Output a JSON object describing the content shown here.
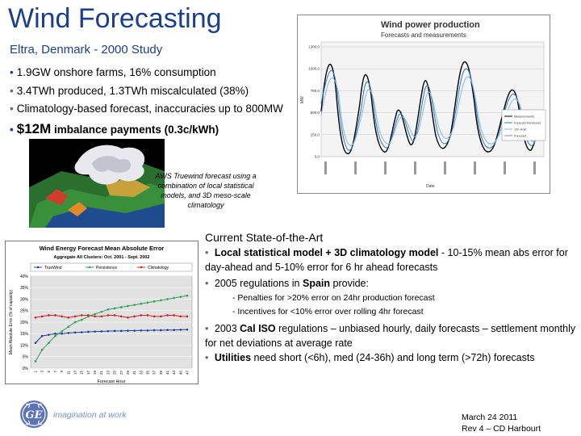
{
  "title": "Wind Forecasting",
  "subtitle": "Eltra, Denmark - 2000 Study",
  "bullets": [
    "1.9GW onshore farms, 16% consumption",
    "3.4TWh produced, 1.3TWh miscalculated (38%)",
    "Climatology-based forecast, inaccuracies up to 800MW"
  ],
  "bullet4": {
    "big": "$12M",
    "rest": " imbalance payments (0.3c/kWh)"
  },
  "wind_chart": {
    "title": "Wind power production",
    "subtitle": "Forecasts and measurements",
    "ylabel": "MW",
    "xlabel": "Date",
    "yticks": [
      "1300,0",
      "1000,0",
      "750,0",
      "500,0",
      "250,0",
      "0,0"
    ],
    "legend": [
      "Measurements",
      "Forecast Kemhuset",
      "12h-Hold",
      "Forecast"
    ]
  },
  "caption": "AWS Truewind forecast using a combination of local statistical models, and 3D meso-scale climatology",
  "chart_data": {
    "type": "line",
    "title": "Wind Energy Forecast Mean Absolute Error",
    "subtitle": "Aggregate All Clusters: Oct. 2001 - Sept. 2002",
    "xlabel": "Forecast Hour",
    "ylabel": "Mean Absolute Error (% of capacity)",
    "ylim": [
      0,
      40
    ],
    "yticks": [
      "0%",
      "5%",
      "10%",
      "15%",
      "20%",
      "25%",
      "30%",
      "35%",
      "40%"
    ],
    "x": [
      1,
      3,
      5,
      7,
      9,
      11,
      13,
      15,
      17,
      19,
      21,
      23,
      25,
      27,
      29,
      31,
      33,
      35,
      37,
      39,
      41,
      43,
      45,
      47
    ],
    "series": [
      {
        "name": "TrueWind",
        "color": "#1f3fa0",
        "values": [
          11,
          14,
          14.5,
          15,
          15,
          15.3,
          15.5,
          15.6,
          15.8,
          15.9,
          16,
          16.1,
          16.2,
          16.2,
          16.3,
          16.3,
          16.4,
          16.4,
          16.5,
          16.5,
          16.6,
          16.6,
          16.7,
          16.8
        ]
      },
      {
        "name": "Persistence",
        "color": "#2e9e5b",
        "values": [
          3,
          8,
          11,
          14,
          16,
          18,
          20,
          21,
          22.5,
          23.5,
          24.5,
          25.5,
          26,
          26.5,
          27,
          27.5,
          28,
          28.5,
          29,
          29.5,
          30,
          30.5,
          31,
          31.5
        ]
      },
      {
        "name": "Climatology",
        "color": "#cc2222",
        "values": [
          22,
          22.5,
          23,
          23,
          22.5,
          22,
          22.5,
          23,
          23,
          22.5,
          22.5,
          23,
          23,
          22.5,
          22,
          22.5,
          23,
          23,
          22.5,
          22.5,
          23,
          23,
          22.5,
          22.5
        ]
      }
    ]
  },
  "sota": {
    "heading": "Current State-of-the-Art",
    "p1_bold": "Local statistical model + 3D climatology model",
    "p1_rest": " - 10-15% mean abs error for day-ahead and 5-10% error  for 6 hr ahead forecasts",
    "p2_pre": "2005 regulations in ",
    "p2_bold": "Spain",
    "p2_post": " provide:",
    "sub1": "- Penalties for >20% error on 24hr production forecast",
    "sub2": "- Incentives for <10% error over rolling 4hr forecast",
    "p3_pre": "2003 ",
    "p3_bold": "Cal ISO",
    "p3_post": " regulations – unbiased hourly, daily forecasts – settlement monthly for net deviations at average rate",
    "p4_bold": "Utilities",
    "p4_post": " need short (<6h), med (24-36h) and long term (>72h) forecasts"
  },
  "footer": {
    "tagline": "imagination at work",
    "date": "March 24 2011",
    "rev": "Rev 4 – CD Harbourt"
  }
}
